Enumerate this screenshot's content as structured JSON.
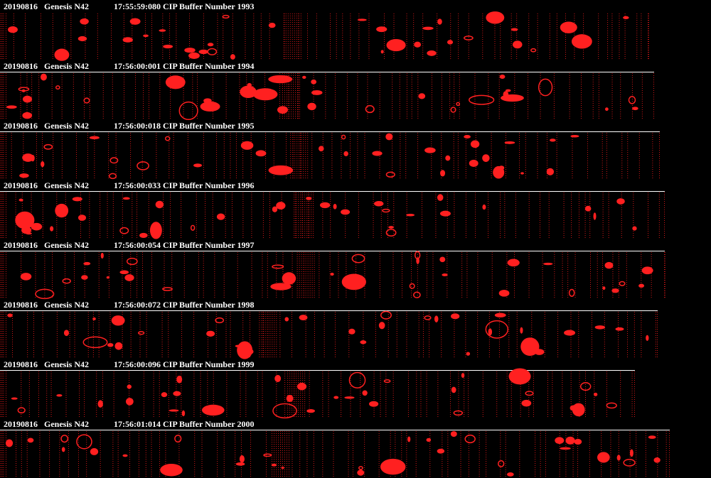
{
  "strips": [
    {
      "date": "20190816",
      "instrument": "Genesis N42",
      "label": "17:55:59:080 CIP Buffer Number 1993"
    },
    {
      "date": "20190816",
      "instrument": "Genesis N42",
      "label": "17:56:00:001 CIP Buffer Number 1994"
    },
    {
      "date": "20190816",
      "instrument": "Genesis N42",
      "label": "17:56:00:018 CIP Buffer Number 1995"
    },
    {
      "date": "20190816",
      "instrument": "Genesis N42",
      "label": "17:56:00:033 CIP Buffer Number 1996"
    },
    {
      "date": "20190816",
      "instrument": "Genesis N42",
      "label": "17:56:00:054 CIP Buffer Number 1997"
    },
    {
      "date": "20190816",
      "instrument": "Genesis N42",
      "label": "17:56:00:072 CIP Buffer Number 1998"
    },
    {
      "date": "20190816",
      "instrument": "Genesis N42",
      "label": "17:56:00:096 CIP Buffer Number 1999"
    },
    {
      "date": "20190816",
      "instrument": "Genesis N42",
      "label": "17:56:01:014 CIP Buffer Number 2000"
    }
  ]
}
